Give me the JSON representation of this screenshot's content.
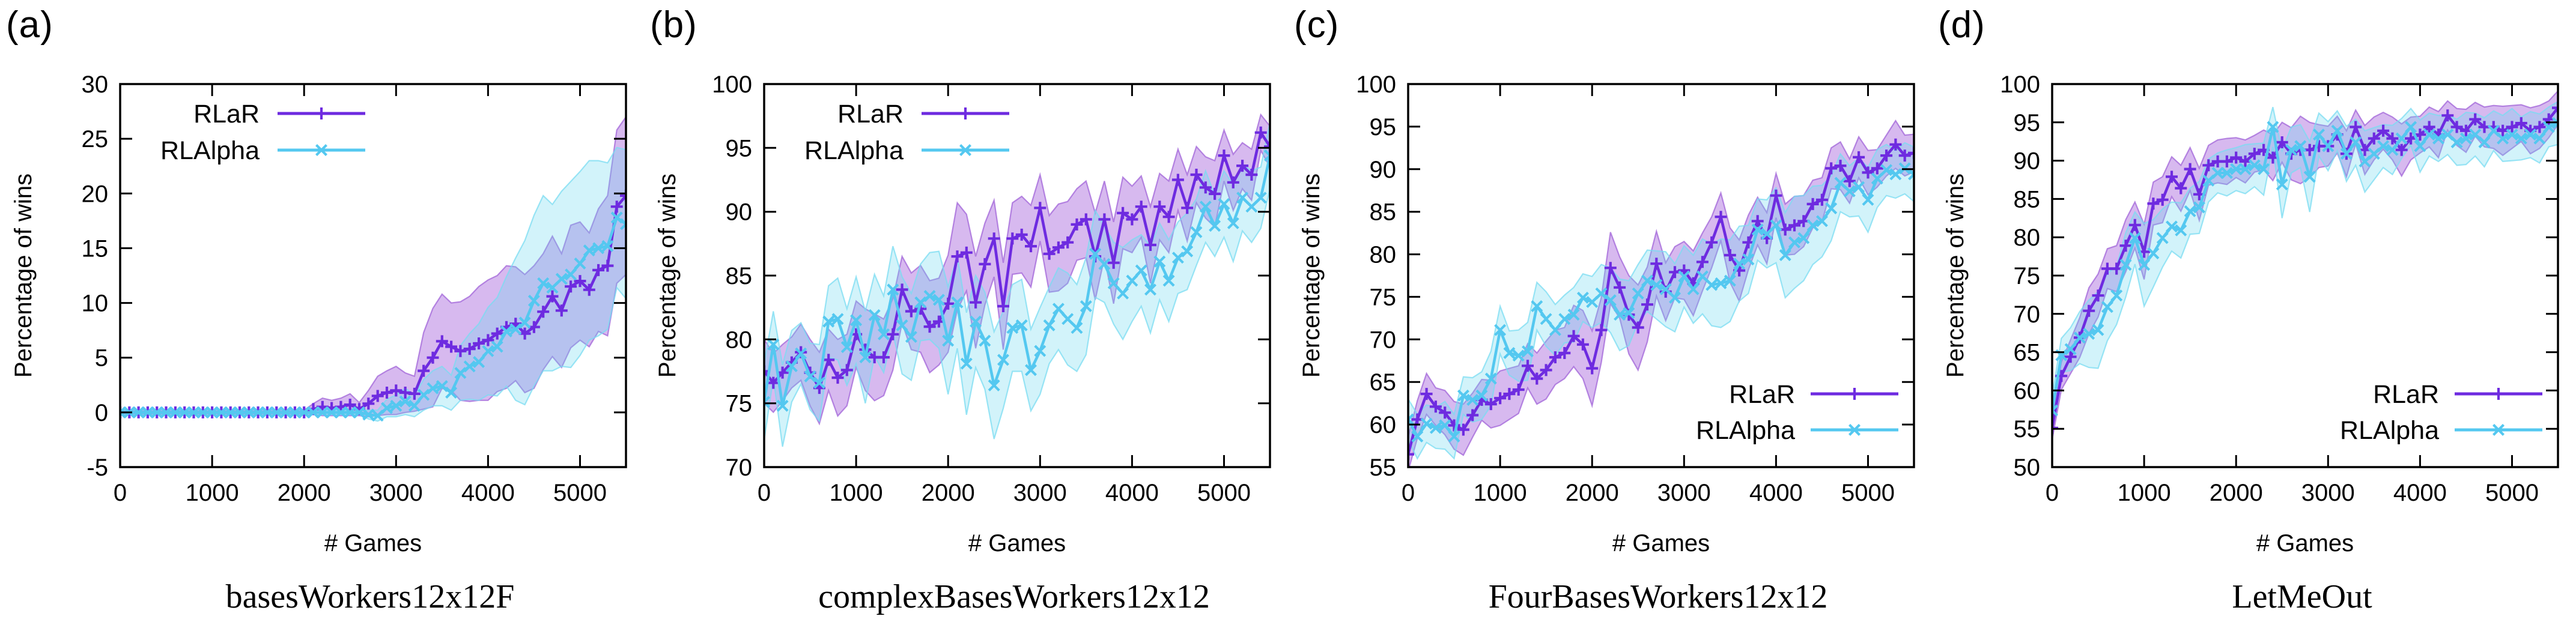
{
  "figure": {
    "xlabel": "# Games",
    "ylabel": "Percentage of wins",
    "colors": {
      "rlar_line": "#6e2be0",
      "rlar_band_fill": "#9b4fd6",
      "rlar_band_edge": "#a063d8",
      "rlalpha_line": "#54c8f0",
      "rlalpha_band_fill": "#6ad8f0",
      "rlalpha_band_edge": "#7adcf2",
      "axis": "#000000",
      "background": "#ffffff"
    },
    "legend_labels": [
      "RLaR",
      "RLAlpha"
    ]
  },
  "chart_data": [
    {
      "type": "line",
      "panel_label": "(a)",
      "caption": "basesWorkers12x12F",
      "xlabel": "# Games",
      "ylabel": "Percentage of wins",
      "xlim": [
        0,
        5500
      ],
      "ylim": [
        -5,
        30
      ],
      "xticks": [
        0,
        1000,
        2000,
        3000,
        4000,
        5000
      ],
      "yticks": [
        -5,
        0,
        5,
        10,
        15,
        20,
        25,
        30
      ],
      "x_step": 100,
      "legend_pos": "top-left",
      "series": [
        {
          "name": "RLaR",
          "marker": "plus",
          "y": [
            0,
            0,
            0,
            0,
            0,
            0,
            0,
            0,
            0,
            0,
            0,
            0,
            0,
            0,
            0,
            0,
            0,
            0,
            0,
            0,
            0,
            0.3,
            0.5,
            0.4,
            0.5,
            0.7,
            0.3,
            0.8,
            1.5,
            1.8,
            2.0,
            1.8,
            1.7,
            3.8,
            5.0,
            6.5,
            6.0,
            5.6,
            5.8,
            6.3,
            6.6,
            7.2,
            7.8,
            8.1,
            7.2,
            7.8,
            9.2,
            10.6,
            9.3,
            11.5,
            12.0,
            11.2,
            13.0,
            13.4,
            18.8,
            19.8
          ],
          "band_hw": [
            0.2,
            0.2,
            0.2,
            0.2,
            0.2,
            0.2,
            0.2,
            0.2,
            0.2,
            0.2,
            0.2,
            0.2,
            0.2,
            0.2,
            0.2,
            0.2,
            0.2,
            0.2,
            0.2,
            0.2,
            0.2,
            0.5,
            0.8,
            0.7,
            0.8,
            1.0,
            0.6,
            1.2,
            1.8,
            2.0,
            2.2,
            1.8,
            1.6,
            3.5,
            4.5,
            4.3,
            4.0,
            4.5,
            4.8,
            5.2,
            5.5,
            5.3,
            5.6,
            5.2,
            5.4,
            5.6,
            5.3,
            5.5,
            5.2,
            5.6,
            5.4,
            5.2,
            5.6,
            6.4,
            7.0,
            7.2
          ]
        },
        {
          "name": "RLAlpha",
          "marker": "cross",
          "y": [
            0,
            0,
            0,
            0,
            0,
            0,
            0,
            0,
            0,
            0,
            0,
            0,
            0,
            0,
            0,
            0,
            0,
            0,
            0,
            0,
            0,
            0,
            0,
            0,
            0,
            0,
            0,
            -0.2,
            -0.3,
            0.4,
            0.6,
            1.0,
            0.6,
            1.6,
            2.2,
            2.4,
            1.8,
            3.6,
            4.2,
            4.6,
            5.6,
            6.0,
            7.4,
            7.6,
            8.2,
            10.2,
            11.8,
            11.4,
            12.2,
            12.6,
            13.6,
            14.8,
            15.0,
            15.2,
            17.8,
            17.2
          ],
          "band_hw": [
            0.2,
            0.2,
            0.2,
            0.2,
            0.2,
            0.2,
            0.2,
            0.2,
            0.2,
            0.2,
            0.2,
            0.2,
            0.2,
            0.2,
            0.2,
            0.2,
            0.2,
            0.2,
            0.2,
            0.2,
            0.2,
            0.2,
            0.2,
            0.2,
            0.2,
            0.2,
            0.2,
            0.4,
            0.5,
            0.8,
            1.0,
            1.2,
            1.0,
            1.4,
            1.6,
            1.8,
            1.6,
            2.5,
            3.0,
            3.5,
            4.0,
            4.5,
            5.0,
            6.5,
            7.5,
            7.8,
            8.0,
            7.6,
            8.0,
            8.5,
            8.4,
            8.2,
            8.0,
            7.6,
            6.4,
            6.8
          ]
        }
      ]
    },
    {
      "type": "line",
      "panel_label": "(b)",
      "caption": "complexBasesWorkers12x12",
      "xlabel": "# Games",
      "ylabel": "Percentage of wins",
      "xlim": [
        0,
        5500
      ],
      "ylim": [
        70,
        100
      ],
      "xticks": [
        0,
        1000,
        2000,
        3000,
        4000,
        5000
      ],
      "yticks": [
        70,
        75,
        80,
        85,
        90,
        95,
        100
      ],
      "x_step": 100,
      "legend_pos": "top-left",
      "series": [
        {
          "name": "RLaR",
          "marker": "plus",
          "y": [
            77.5,
            76.6,
            77.4,
            78.2,
            79.0,
            77.4,
            76.2,
            78.4,
            77.0,
            77.6,
            80.4,
            79.2,
            78.6,
            78.6,
            80.4,
            83.9,
            82.2,
            82.4,
            81.0,
            81.4,
            82.8,
            86.5,
            86.8,
            82.9,
            85.9,
            87.9,
            82.6,
            87.9,
            88.2,
            87.3,
            90.3,
            86.7,
            87.2,
            87.6,
            89.0,
            89.4,
            86.5,
            89.4,
            86.0,
            89.9,
            89.4,
            90.4,
            87.4,
            90.4,
            89.6,
            92.5,
            90.3,
            92.9,
            91.9,
            91.4,
            94.4,
            92.3,
            93.6,
            92.9,
            96.2,
            95.1
          ],
          "band_hw": [
            2.5,
            2.3,
            2.2,
            2.0,
            2.2,
            2.6,
            2.8,
            2.4,
            3.0,
            2.8,
            2.6,
            3.2,
            3.4,
            3.0,
            2.8,
            2.6,
            3.0,
            3.4,
            3.6,
            3.4,
            3.8,
            4.2,
            3.0,
            3.6,
            3.2,
            3.0,
            3.4,
            2.8,
            3.0,
            3.2,
            2.6,
            3.0,
            3.4,
            3.2,
            2.8,
            3.0,
            3.4,
            3.0,
            3.2,
            2.8,
            2.6,
            2.4,
            3.0,
            2.6,
            2.8,
            2.4,
            2.6,
            2.2,
            2.4,
            2.6,
            2.0,
            2.2,
            1.8,
            2.0,
            1.4,
            1.6
          ]
        },
        {
          "name": "RLAlpha",
          "marker": "cross",
          "y": [
            75.1,
            79.6,
            74.8,
            77.9,
            78.9,
            77.1,
            76.6,
            81.4,
            81.6,
            79.4,
            81.5,
            78.6,
            81.9,
            80.4,
            83.9,
            81.1,
            80.2,
            82.9,
            83.4,
            83.1,
            79.9,
            82.9,
            78.1,
            81.4,
            79.9,
            76.4,
            78.4,
            80.9,
            81.1,
            77.6,
            79.1,
            81.1,
            82.4,
            81.6,
            80.9,
            82.6,
            86.7,
            85.9,
            84.4,
            83.6,
            84.6,
            85.4,
            83.9,
            86.1,
            84.6,
            86.4,
            86.9,
            88.4,
            90.4,
            88.9,
            90.6,
            89.1,
            91.1,
            90.4,
            91.1,
            94.4
          ],
          "band_hw": [
            3.0,
            2.6,
            3.2,
            2.8,
            2.4,
            2.6,
            3.0,
            2.8,
            3.2,
            3.0,
            3.4,
            3.6,
            3.2,
            3.0,
            3.4,
            3.8,
            3.4,
            3.0,
            3.4,
            3.8,
            4.2,
            3.6,
            4.0,
            3.6,
            3.8,
            4.2,
            3.8,
            3.4,
            3.6,
            3.2,
            3.4,
            3.0,
            3.2,
            3.6,
            3.4,
            3.8,
            3.4,
            3.0,
            3.2,
            3.6,
            3.2,
            2.8,
            3.4,
            3.0,
            3.2,
            2.8,
            3.0,
            2.6,
            2.8,
            2.4,
            2.6,
            3.0,
            2.6,
            2.8,
            2.4,
            2.6
          ]
        }
      ]
    },
    {
      "type": "line",
      "panel_label": "(c)",
      "caption": "FourBasesWorkers12x12",
      "xlabel": "# Games",
      "ylabel": "Percentage of wins",
      "xlim": [
        0,
        5500
      ],
      "ylim": [
        55,
        100
      ],
      "xticks": [
        0,
        1000,
        2000,
        3000,
        4000,
        5000
      ],
      "yticks": [
        55,
        60,
        65,
        70,
        75,
        80,
        85,
        90,
        95,
        100
      ],
      "x_step": 100,
      "legend_pos": "bottom-right",
      "series": [
        {
          "name": "RLaR",
          "marker": "plus",
          "y": [
            56.5,
            60.6,
            63.6,
            62.1,
            61.4,
            59.9,
            59.4,
            61.1,
            62.9,
            62.4,
            63.1,
            63.6,
            64.1,
            66.9,
            65.4,
            66.4,
            67.9,
            68.4,
            70.4,
            69.4,
            66.6,
            71.1,
            78.4,
            76.1,
            72.9,
            71.4,
            74.1,
            78.9,
            75.6,
            77.9,
            78.1,
            76.6,
            79.1,
            81.4,
            84.4,
            79.9,
            78.1,
            81.4,
            83.9,
            81.9,
            86.9,
            82.9,
            83.4,
            83.9,
            85.9,
            86.4,
            90.1,
            90.4,
            88.6,
            91.4,
            89.6,
            90.1,
            91.6,
            92.9,
            91.6,
            91.9
          ],
          "band_hw": [
            2.0,
            2.2,
            2.4,
            2.2,
            2.6,
            2.8,
            3.0,
            2.6,
            2.4,
            2.8,
            3.2,
            3.0,
            2.8,
            2.6,
            3.0,
            3.4,
            3.2,
            3.0,
            3.6,
            4.0,
            4.4,
            3.8,
            4.2,
            3.6,
            4.6,
            5.0,
            4.4,
            3.8,
            3.4,
            3.0,
            3.4,
            3.8,
            3.4,
            3.0,
            2.8,
            3.2,
            3.6,
            3.2,
            2.8,
            3.0,
            2.6,
            3.0,
            3.4,
            3.0,
            2.8,
            2.6,
            2.4,
            2.8,
            2.6,
            2.4,
            2.6,
            2.2,
            2.4,
            2.8,
            2.4,
            2.2
          ]
        },
        {
          "name": "RLAlpha",
          "marker": "cross",
          "y": [
            60.6,
            58.6,
            60.1,
            59.6,
            59.9,
            58.6,
            63.4,
            62.9,
            63.4,
            65.4,
            71.1,
            68.4,
            68.1,
            68.6,
            73.9,
            72.4,
            71.1,
            72.4,
            72.9,
            74.9,
            74.4,
            75.4,
            74.6,
            72.9,
            73.1,
            75.4,
            76.9,
            76.4,
            75.9,
            74.9,
            77.4,
            75.9,
            77.4,
            76.4,
            76.6,
            76.9,
            78.9,
            79.4,
            82.9,
            82.4,
            83.4,
            79.9,
            81.4,
            81.9,
            83.4,
            83.9,
            85.4,
            88.4,
            87.4,
            87.9,
            86.4,
            88.9,
            89.9,
            89.4,
            90.1,
            89.4
          ],
          "band_hw": [
            2.4,
            2.6,
            2.2,
            2.4,
            2.8,
            2.6,
            2.2,
            2.6,
            2.8,
            3.2,
            2.8,
            2.6,
            3.0,
            3.4,
            2.8,
            3.2,
            3.0,
            2.8,
            3.2,
            2.8,
            3.0,
            3.4,
            3.8,
            4.2,
            3.8,
            3.4,
            3.6,
            4.0,
            4.4,
            4.0,
            3.6,
            4.0,
            4.4,
            4.8,
            5.2,
            4.8,
            4.4,
            4.0,
            3.6,
            4.0,
            4.4,
            5.0,
            5.4,
            5.0,
            4.6,
            4.2,
            3.8,
            3.4,
            3.0,
            3.4,
            3.8,
            3.4,
            3.0,
            2.8,
            3.0,
            3.2
          ]
        }
      ]
    },
    {
      "type": "line",
      "panel_label": "(d)",
      "caption": "LetMeOut",
      "xlabel": "# Games",
      "ylabel": "Percentage of wins",
      "xlim": [
        0,
        5500
      ],
      "ylim": [
        50,
        100
      ],
      "xticks": [
        0,
        1000,
        2000,
        3000,
        4000,
        5000
      ],
      "yticks": [
        50,
        55,
        60,
        65,
        70,
        75,
        80,
        85,
        90,
        95,
        100
      ],
      "x_step": 100,
      "legend_pos": "bottom-right",
      "series": [
        {
          "name": "RLaR",
          "marker": "plus",
          "y": [
            55.1,
            61.9,
            64.4,
            66.9,
            70.4,
            72.4,
            75.9,
            75.9,
            78.9,
            81.6,
            78.1,
            84.4,
            84.9,
            87.9,
            86.4,
            88.9,
            85.6,
            89.4,
            89.9,
            89.9,
            90.4,
            89.9,
            90.9,
            91.4,
            90.4,
            92.4,
            90.9,
            91.4,
            91.4,
            91.9,
            91.9,
            93.4,
            90.9,
            94.4,
            91.4,
            92.9,
            93.9,
            92.9,
            91.4,
            92.9,
            93.4,
            94.4,
            93.4,
            95.9,
            94.4,
            93.9,
            95.4,
            94.4,
            94.4,
            93.9,
            94.4,
            94.9,
            93.9,
            94.4,
            95.4,
            96.9
          ],
          "band_hw": [
            1.5,
            1.8,
            2.2,
            2.6,
            3.0,
            2.8,
            2.6,
            3.0,
            3.4,
            3.0,
            3.6,
            2.8,
            3.0,
            2.6,
            3.0,
            2.8,
            3.4,
            2.6,
            2.8,
            3.0,
            2.6,
            2.8,
            2.4,
            2.6,
            3.0,
            2.6,
            3.4,
            4.4,
            3.6,
            2.8,
            2.6,
            2.4,
            3.0,
            2.2,
            3.2,
            2.8,
            2.4,
            2.8,
            3.4,
            2.8,
            2.4,
            2.6,
            3.0,
            1.9,
            2.4,
            2.8,
            2.2,
            2.6,
            2.8,
            3.2,
            2.8,
            2.4,
            3.0,
            2.8,
            2.4,
            2.2
          ]
        },
        {
          "name": "RLAlpha",
          "marker": "cross",
          "y": [
            57.4,
            64.6,
            65.4,
            66.9,
            67.4,
            67.9,
            70.9,
            72.4,
            76.4,
            79.9,
            76.4,
            77.9,
            79.9,
            81.4,
            80.9,
            83.4,
            83.9,
            87.4,
            88.4,
            88.4,
            88.9,
            88.9,
            89.4,
            88.9,
            94.4,
            86.9,
            91.4,
            91.9,
            87.9,
            93.4,
            91.9,
            93.9,
            90.9,
            92.4,
            89.9,
            90.9,
            91.9,
            91.4,
            92.9,
            94.4,
            91.9,
            93.4,
            92.9,
            93.4,
            92.4,
            92.9,
            93.4,
            92.4,
            93.9,
            92.9,
            93.4,
            92.9,
            93.4,
            92.9,
            94.4,
            94.9
          ],
          "band_hw": [
            1.8,
            2.2,
            2.8,
            3.4,
            4.4,
            5.0,
            4.4,
            3.8,
            4.2,
            3.4,
            5.4,
            4.4,
            3.8,
            3.2,
            3.6,
            3.0,
            3.4,
            2.8,
            2.6,
            3.0,
            2.8,
            3.2,
            2.8,
            3.4,
            2.6,
            4.4,
            3.0,
            2.8,
            4.6,
            2.8,
            3.2,
            2.6,
            3.6,
            3.0,
            4.0,
            3.4,
            2.8,
            3.2,
            2.6,
            2.4,
            3.4,
            2.8,
            3.0,
            2.6,
            3.0,
            3.4,
            2.8,
            3.2,
            2.6,
            3.0,
            3.4,
            2.8,
            3.0,
            3.2,
            2.6,
            2.8
          ]
        }
      ]
    }
  ]
}
